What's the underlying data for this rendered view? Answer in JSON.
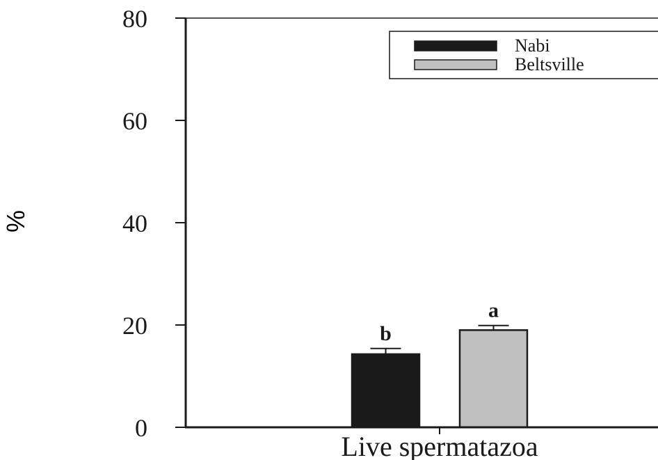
{
  "chart_data": {
    "type": "bar",
    "xlabel": "Live spermatazoa",
    "ylabel": "%",
    "ylim": [
      0,
      80
    ],
    "yticks": [
      0,
      20,
      40,
      60,
      80
    ],
    "categories": [
      "Live spermatazoa"
    ],
    "series": [
      {
        "name": "Nabi",
        "values": [
          14.3
        ],
        "error": [
          1.1
        ],
        "letter": "b",
        "color": "#1a1a1a"
      },
      {
        "name": "Beltsville",
        "values": [
          19.0
        ],
        "error": [
          0.9
        ],
        "letter": "a",
        "color": "#c0c0c0"
      }
    ],
    "legend": "top-right",
    "grid": false
  }
}
